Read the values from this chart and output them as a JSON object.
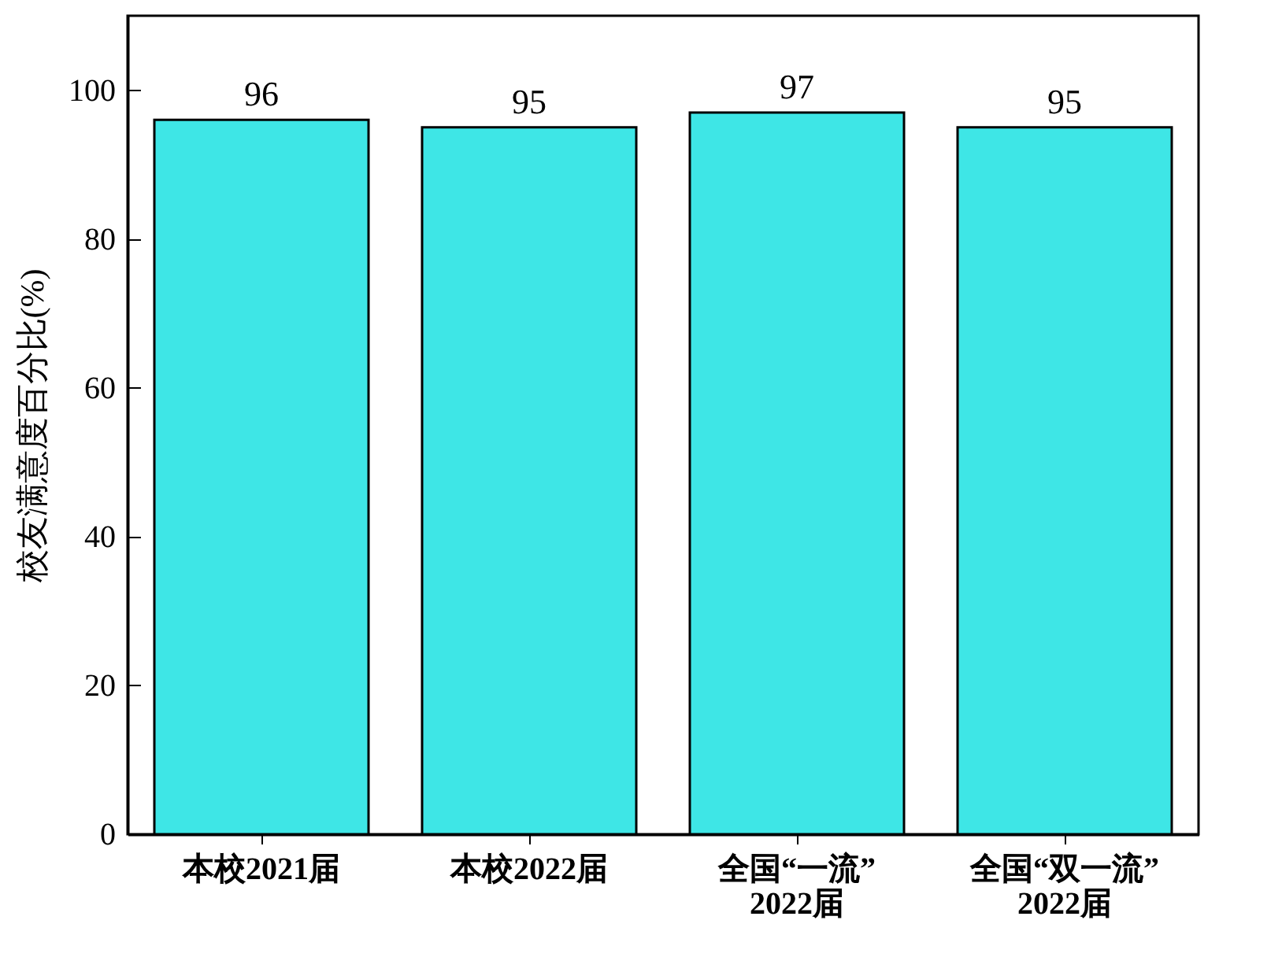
{
  "chart_data": {
    "type": "bar",
    "categories": [
      "本校2021届",
      "本校2022届",
      "全国“一流”\n2022届",
      "全国“双一流”\n2022届"
    ],
    "values": [
      96,
      95,
      97,
      95
    ],
    "color": "#3ee6e6",
    "ylabel": "校友满意度百分比(%)",
    "ylim": [
      0,
      110
    ],
    "yticks": [
      0,
      20,
      40,
      60,
      80,
      100
    ],
    "data_labels": true,
    "grid": false
  }
}
